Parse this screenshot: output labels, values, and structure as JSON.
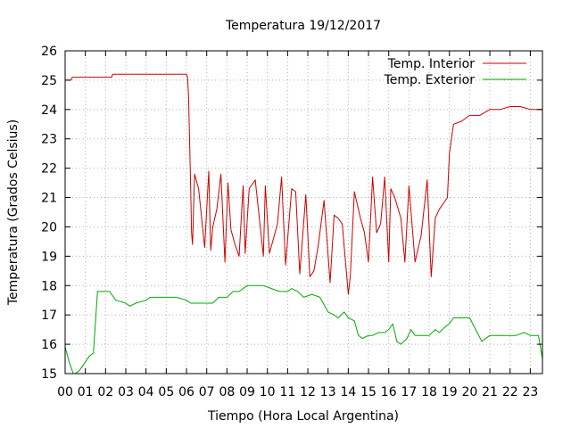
{
  "chart_data": {
    "type": "line",
    "title": "Temperatura 19/12/2017",
    "xlabel": "Tiempo (Hora Local Argentina)",
    "ylabel": "Temperatura (Grados Celsius)",
    "xlim": [
      0,
      23.6
    ],
    "ylim": [
      15,
      26
    ],
    "grid": true,
    "legend_position": "top-right",
    "x_tick_labels": [
      "00",
      "01",
      "02",
      "03",
      "04",
      "05",
      "06",
      "07",
      "08",
      "09",
      "10",
      "11",
      "12",
      "13",
      "14",
      "15",
      "16",
      "17",
      "18",
      "19",
      "20",
      "21",
      "22",
      "23"
    ],
    "y_ticks": [
      15,
      16,
      17,
      18,
      19,
      20,
      21,
      22,
      23,
      24,
      25,
      26
    ],
    "series": [
      {
        "name": "Temp. Interior",
        "color": "#cc0000",
        "x": [
          0.0,
          0.3,
          0.35,
          1.0,
          2.0,
          2.3,
          2.35,
          3.0,
          4.0,
          5.0,
          6.0,
          6.05,
          6.1,
          6.2,
          6.25,
          6.3,
          6.4,
          6.6,
          6.9,
          7.1,
          7.2,
          7.3,
          7.5,
          7.7,
          7.9,
          8.05,
          8.2,
          8.4,
          8.6,
          8.8,
          8.9,
          9.1,
          9.2,
          9.4,
          9.8,
          9.9,
          10.1,
          10.3,
          10.5,
          10.7,
          10.9,
          11.2,
          11.4,
          11.6,
          11.9,
          12.1,
          12.3,
          12.5,
          12.8,
          13.1,
          13.3,
          13.5,
          13.7,
          14.0,
          14.1,
          14.3,
          14.6,
          14.8,
          15.0,
          15.2,
          15.4,
          15.6,
          15.8,
          16.0,
          16.1,
          16.3,
          16.6,
          16.8,
          17.0,
          17.3,
          17.6,
          17.9,
          18.1,
          18.3,
          18.5,
          18.9,
          19.0,
          19.2,
          19.6,
          20.0,
          20.5,
          21.0,
          21.5,
          22.0,
          22.5,
          23.0,
          23.3,
          23.6
        ],
        "values": [
          25.0,
          25.0,
          25.1,
          25.1,
          25.1,
          25.1,
          25.2,
          25.2,
          25.2,
          25.2,
          25.2,
          25.1,
          24.5,
          21.5,
          19.8,
          19.4,
          21.8,
          21.3,
          19.3,
          21.9,
          19.2,
          20.0,
          20.6,
          21.8,
          18.8,
          21.5,
          19.9,
          19.4,
          19.0,
          21.4,
          19.1,
          21.3,
          21.4,
          21.6,
          19.0,
          21.4,
          19.1,
          19.6,
          20.1,
          21.7,
          18.7,
          21.3,
          21.2,
          18.4,
          21.1,
          18.3,
          18.5,
          19.3,
          20.9,
          18.1,
          20.4,
          20.3,
          20.1,
          17.7,
          18.3,
          21.2,
          20.3,
          19.8,
          18.8,
          21.7,
          19.8,
          20.1,
          21.7,
          18.8,
          21.3,
          21.0,
          20.3,
          18.8,
          21.4,
          18.8,
          19.7,
          21.6,
          18.3,
          20.3,
          20.6,
          21.0,
          22.5,
          23.5,
          23.6,
          23.8,
          23.8,
          24.0,
          24.0,
          24.1,
          24.1,
          24.0,
          24.0,
          24.0
        ]
      },
      {
        "name": "Temp. Exterior",
        "color": "#00aa00",
        "x": [
          0.0,
          0.2,
          0.4,
          0.5,
          0.7,
          1.0,
          1.2,
          1.4,
          1.6,
          2.0,
          2.2,
          2.5,
          3.0,
          3.2,
          3.5,
          4.0,
          4.2,
          4.5,
          5.0,
          5.5,
          6.0,
          6.2,
          6.5,
          7.0,
          7.3,
          7.6,
          8.0,
          8.3,
          8.6,
          9.0,
          9.4,
          9.8,
          10.2,
          10.6,
          11.0,
          11.2,
          11.5,
          11.8,
          12.2,
          12.6,
          13.0,
          13.3,
          13.5,
          13.8,
          14.0,
          14.3,
          14.5,
          14.7,
          15.0,
          15.2,
          15.5,
          15.8,
          16.0,
          16.2,
          16.4,
          16.6,
          16.9,
          17.1,
          17.3,
          17.6,
          18.0,
          18.3,
          18.5,
          18.8,
          19.0,
          19.2,
          19.5,
          19.8,
          20.0,
          20.3,
          20.6,
          21.0,
          21.5,
          22.0,
          22.3,
          22.7,
          23.0,
          23.4,
          23.6
        ],
        "values": [
          15.9,
          15.4,
          15.0,
          15.0,
          15.1,
          15.4,
          15.6,
          15.7,
          17.8,
          17.8,
          17.8,
          17.5,
          17.4,
          17.3,
          17.4,
          17.5,
          17.6,
          17.6,
          17.6,
          17.6,
          17.5,
          17.4,
          17.4,
          17.4,
          17.4,
          17.6,
          17.6,
          17.8,
          17.8,
          18.0,
          18.0,
          18.0,
          17.9,
          17.8,
          17.8,
          17.9,
          17.8,
          17.6,
          17.7,
          17.6,
          17.1,
          17.0,
          16.9,
          17.1,
          16.9,
          16.8,
          16.3,
          16.2,
          16.3,
          16.3,
          16.4,
          16.4,
          16.5,
          16.7,
          16.1,
          16.0,
          16.2,
          16.5,
          16.3,
          16.3,
          16.3,
          16.5,
          16.4,
          16.6,
          16.7,
          16.9,
          16.9,
          16.9,
          16.9,
          16.5,
          16.1,
          16.3,
          16.3,
          16.3,
          16.3,
          16.4,
          16.3,
          16.3,
          15.5
        ]
      }
    ]
  }
}
